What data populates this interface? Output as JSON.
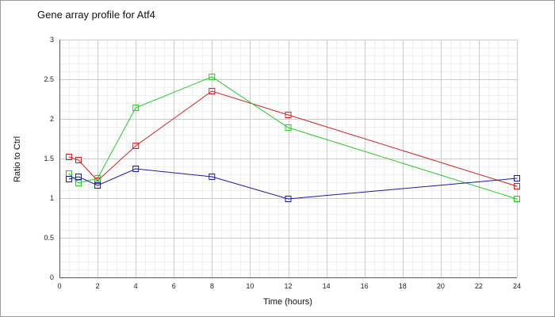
{
  "chart_data": {
    "type": "line",
    "title": "Gene array profile for Atf4",
    "xlabel": "Time (hours)",
    "ylabel": "Ratio to Ctrl",
    "xlim": [
      0,
      24
    ],
    "ylim": [
      0,
      3
    ],
    "x_ticks": [
      0,
      2,
      4,
      6,
      8,
      10,
      12,
      14,
      16,
      18,
      20,
      22,
      24
    ],
    "y_ticks": [
      0,
      0.5,
      1,
      1.5,
      2,
      2.5,
      3
    ],
    "x_tick_labels": [
      "0",
      "2",
      "4",
      "6",
      "8",
      "10",
      "12",
      "14",
      "16",
      "18",
      "20",
      "22",
      "24"
    ],
    "y_tick_labels": [
      "0",
      "0.5",
      "1",
      "1.5",
      "2",
      "2.5",
      "3"
    ],
    "grid": true,
    "legend": false,
    "series": [
      {
        "color": "#d42020",
        "x": [
          0.5,
          1,
          2,
          4,
          8,
          12,
          24
        ],
        "values": [
          1.52,
          1.48,
          1.22,
          1.66,
          2.35,
          2.05,
          1.15
        ]
      },
      {
        "color": "#22cc22",
        "x": [
          0.5,
          1,
          2,
          4,
          8,
          12,
          24
        ],
        "values": [
          1.31,
          1.19,
          1.25,
          2.14,
          2.53,
          1.89,
          0.99
        ]
      },
      {
        "color": "#1a1aa8",
        "x": [
          0.5,
          1,
          2,
          4,
          8,
          12,
          24
        ],
        "values": [
          1.24,
          1.27,
          1.16,
          1.37,
          1.27,
          0.99,
          1.25
        ]
      }
    ]
  }
}
